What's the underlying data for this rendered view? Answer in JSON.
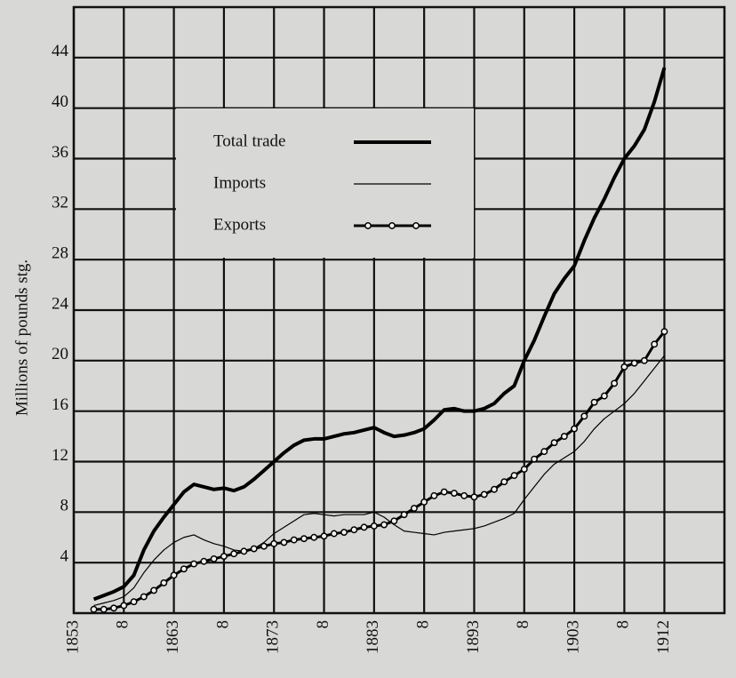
{
  "chart_data": {
    "type": "line",
    "y_label": "Millions of pounds stg.",
    "x": [
      1855,
      1856,
      1857,
      1858,
      1859,
      1860,
      1861,
      1862,
      1863,
      1864,
      1865,
      1866,
      1867,
      1868,
      1869,
      1870,
      1871,
      1872,
      1873,
      1874,
      1875,
      1876,
      1877,
      1878,
      1879,
      1880,
      1881,
      1882,
      1883,
      1884,
      1885,
      1886,
      1887,
      1888,
      1889,
      1890,
      1891,
      1892,
      1893,
      1894,
      1895,
      1896,
      1897,
      1898,
      1899,
      1900,
      1901,
      1902,
      1903,
      1904,
      1905,
      1906,
      1907,
      1908,
      1909,
      1910,
      1911,
      1912
    ],
    "series": [
      {
        "name": "Total trade",
        "color": "#000000",
        "line_width": 4,
        "marker": "none",
        "values": [
          1.1,
          1.4,
          1.7,
          2.1,
          3.0,
          5.0,
          6.5,
          7.6,
          8.6,
          9.6,
          10.2,
          10.0,
          9.8,
          9.9,
          9.7,
          10.0,
          10.6,
          11.3,
          12.0,
          12.7,
          13.3,
          13.7,
          13.8,
          13.8,
          14.0,
          14.2,
          14.3,
          14.5,
          14.7,
          14.3,
          14.0,
          14.1,
          14.3,
          14.6,
          15.3,
          16.1,
          16.2,
          16.0,
          16.0,
          16.2,
          16.6,
          17.4,
          18.0,
          20.0,
          21.6,
          23.5,
          25.3,
          26.5,
          27.5,
          29.5,
          31.3,
          32.8,
          34.5,
          36.0,
          37.0,
          38.3,
          40.5,
          43.2
        ]
      },
      {
        "name": "Imports",
        "color": "#000000",
        "line_width": 1.2,
        "marker": "none",
        "values": [
          0.6,
          0.8,
          1.0,
          1.3,
          2.0,
          3.2,
          4.2,
          5.0,
          5.6,
          6.0,
          6.2,
          5.8,
          5.5,
          5.3,
          5.0,
          4.9,
          5.1,
          5.6,
          6.3,
          6.8,
          7.3,
          7.8,
          7.9,
          7.8,
          7.7,
          7.8,
          7.8,
          7.8,
          8.0,
          7.6,
          7.0,
          6.5,
          6.4,
          6.3,
          6.2,
          6.4,
          6.5,
          6.6,
          6.7,
          6.9,
          7.2,
          7.5,
          7.9,
          9.0,
          10.0,
          11.0,
          11.8,
          12.3,
          12.8,
          13.6,
          14.6,
          15.4,
          16.0,
          16.6,
          17.4,
          18.4,
          19.4,
          20.4
        ]
      },
      {
        "name": "Exports",
        "color": "#000000",
        "line_width": 3,
        "marker": "circle",
        "values": [
          0.3,
          0.3,
          0.4,
          0.6,
          0.9,
          1.3,
          1.8,
          2.4,
          3.0,
          3.5,
          3.9,
          4.1,
          4.3,
          4.5,
          4.7,
          4.9,
          5.1,
          5.3,
          5.5,
          5.6,
          5.8,
          5.9,
          6.0,
          6.1,
          6.3,
          6.4,
          6.6,
          6.8,
          6.9,
          7.0,
          7.3,
          7.8,
          8.3,
          8.8,
          9.3,
          9.6,
          9.5,
          9.3,
          9.2,
          9.4,
          9.8,
          10.4,
          10.9,
          11.4,
          12.2,
          12.8,
          13.5,
          14.0,
          14.6,
          15.6,
          16.7,
          17.2,
          18.2,
          19.5,
          19.8,
          20.0,
          21.3,
          22.3
        ]
      }
    ],
    "xlim": [
      1853,
      1918
    ],
    "ylim": [
      0,
      48
    ],
    "xticks": [
      1853,
      {
        "value": 1858,
        "label": "8"
      },
      1863,
      {
        "value": 1868,
        "label": "8"
      },
      1873,
      {
        "value": 1878,
        "label": "8"
      },
      1883,
      {
        "value": 1888,
        "label": "8"
      },
      1893,
      {
        "value": 1898,
        "label": "8"
      },
      1903,
      {
        "value": 1908,
        "label": "8"
      },
      1912
    ],
    "yticks": [
      4,
      8,
      12,
      16,
      20,
      24,
      28,
      32,
      36,
      40,
      44
    ],
    "grid": true,
    "legend": "upper-left"
  }
}
